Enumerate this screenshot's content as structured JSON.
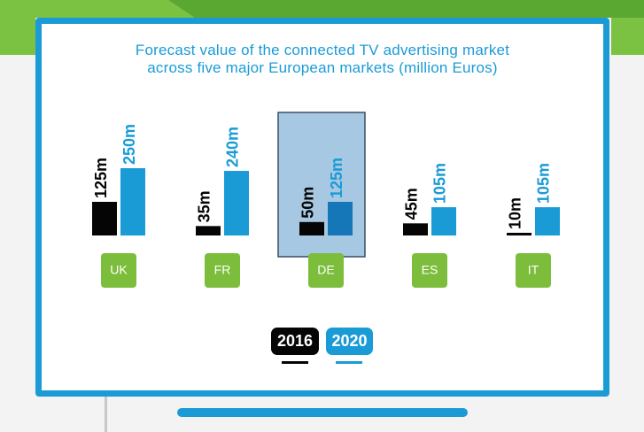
{
  "colors": {
    "series_2016": "#050505",
    "series_2020": "#1a9bd6",
    "highlight_fill": "#a6c8e2",
    "highlight_stroke": "#3a4f63",
    "category_badge": "#7cbd3c",
    "frame": "#1a9bd6"
  },
  "chart_data": {
    "type": "bar",
    "title": "Forecast value of the connected TV advertising market across five major European markets (million Euros)",
    "title_lines": [
      "Forecast value of the connected TV advertising market",
      "across five major European markets (million Euros)"
    ],
    "categories": [
      "UK",
      "FR",
      "DE",
      "ES",
      "IT"
    ],
    "highlighted_category": "DE",
    "series": [
      {
        "name": "2016",
        "values": [
          125,
          35,
          50,
          45,
          10
        ],
        "labels": [
          "125m",
          "35m",
          "50m",
          "45m",
          "10m"
        ]
      },
      {
        "name": "2020",
        "values": [
          250,
          240,
          125,
          105,
          105
        ],
        "labels": [
          "250m",
          "240m",
          "125m",
          "105m",
          "105m"
        ]
      }
    ],
    "legend": [
      "2016",
      "2020"
    ],
    "legend_position": "bottom-center",
    "grid": false,
    "ylim": [
      0,
      250
    ],
    "xlabel": "",
    "ylabel": ""
  }
}
